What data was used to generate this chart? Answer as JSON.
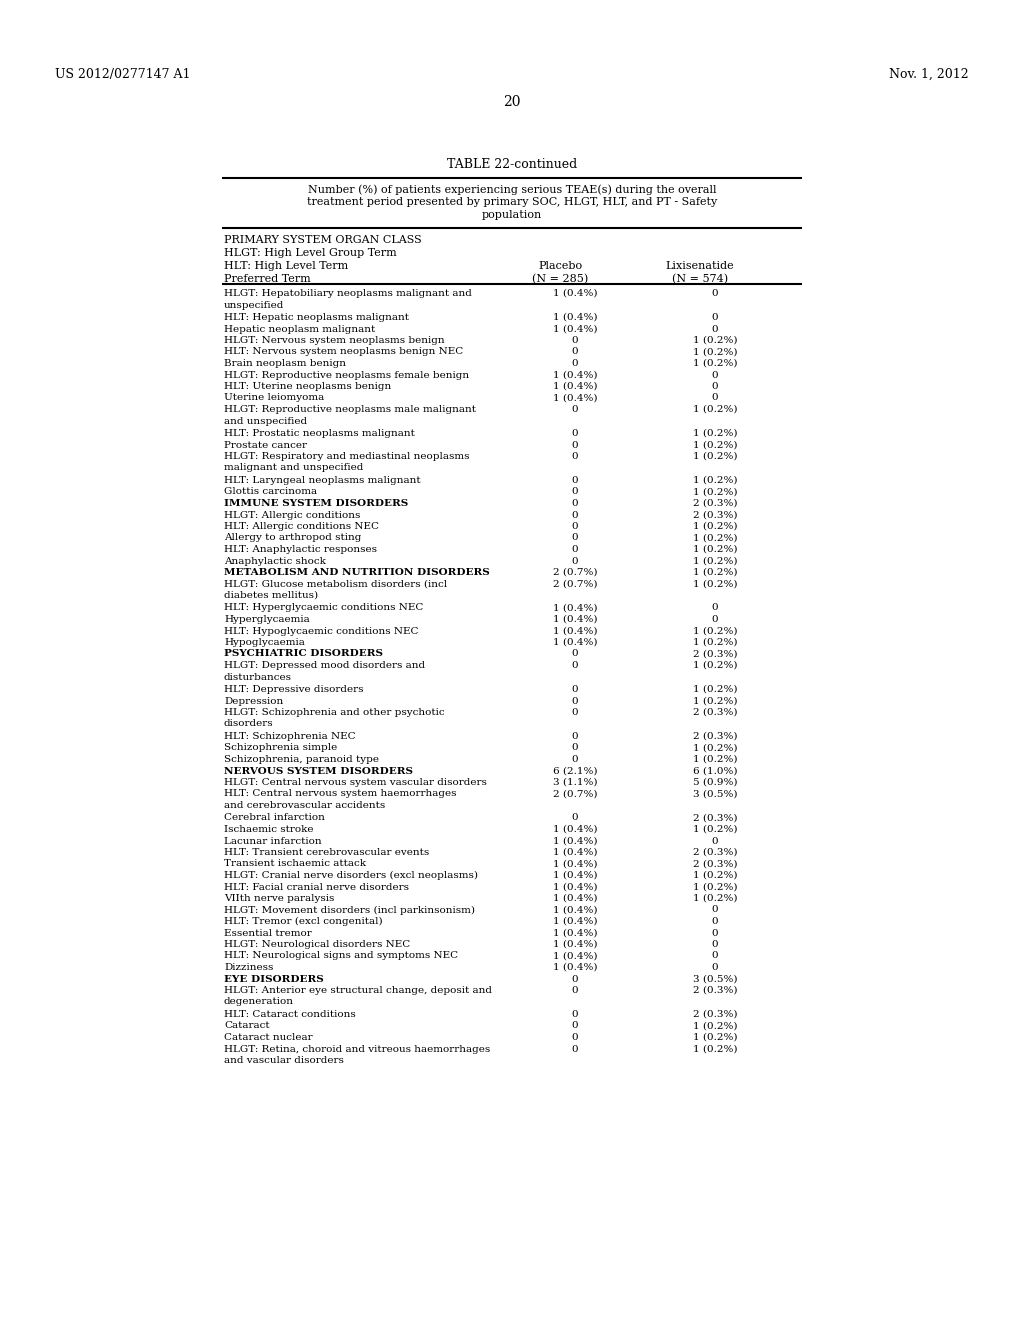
{
  "header_left": "US 2012/0277147 A1",
  "header_right": "Nov. 1, 2012",
  "page_number": "20",
  "table_title": "TABLE 22-continued",
  "table_subtitle": "Number (%) of patients experiencing serious TEAE(s) during the overall\ntreatment period presented by primary SOC, HLGT, HLT, and PT - Safety\npopulation",
  "label_headers": [
    "PRIMARY SYSTEM ORGAN CLASS",
    "HLGT: High Level Group Term",
    "HLT: High Level Term",
    "Preferred Term"
  ],
  "col1_header": [
    "Placebo",
    "(N = 285)"
  ],
  "col2_header": [
    "Lixisenatide",
    "(N = 574)"
  ],
  "rows": [
    [
      "HLGT: Hepatobiliary neoplasms malignant and\nunspecified",
      "1 (0.4%)",
      "0"
    ],
    [
      "HLT: Hepatic neoplasms malignant",
      "1 (0.4%)",
      "0"
    ],
    [
      "Hepatic neoplasm malignant",
      "1 (0.4%)",
      "0"
    ],
    [
      "HLGT: Nervous system neoplasms benign",
      "0",
      "1 (0.2%)"
    ],
    [
      "HLT: Nervous system neoplasms benign NEC",
      "0",
      "1 (0.2%)"
    ],
    [
      "Brain neoplasm benign",
      "0",
      "1 (0.2%)"
    ],
    [
      "HLGT: Reproductive neoplasms female benign",
      "1 (0.4%)",
      "0"
    ],
    [
      "HLT: Uterine neoplasms benign",
      "1 (0.4%)",
      "0"
    ],
    [
      "Uterine leiomyoma",
      "1 (0.4%)",
      "0"
    ],
    [
      "HLGT: Reproductive neoplasms male malignant\nand unspecified",
      "0",
      "1 (0.2%)"
    ],
    [
      "HLT: Prostatic neoplasms malignant",
      "0",
      "1 (0.2%)"
    ],
    [
      "Prostate cancer",
      "0",
      "1 (0.2%)"
    ],
    [
      "HLGT: Respiratory and mediastinal neoplasms\nmalignant and unspecified",
      "0",
      "1 (0.2%)"
    ],
    [
      "HLT: Laryngeal neoplasms malignant",
      "0",
      "1 (0.2%)"
    ],
    [
      "Glottis carcinoma",
      "0",
      "1 (0.2%)"
    ],
    [
      "IMMUNE SYSTEM DISORDERS",
      "0",
      "2 (0.3%)"
    ],
    [
      "HLGT: Allergic conditions",
      "0",
      "2 (0.3%)"
    ],
    [
      "HLT: Allergic conditions NEC",
      "0",
      "1 (0.2%)"
    ],
    [
      "Allergy to arthropod sting",
      "0",
      "1 (0.2%)"
    ],
    [
      "HLT: Anaphylactic responses",
      "0",
      "1 (0.2%)"
    ],
    [
      "Anaphylactic shock",
      "0",
      "1 (0.2%)"
    ],
    [
      "METABOLISM AND NUTRITION DISORDERS",
      "2 (0.7%)",
      "1 (0.2%)"
    ],
    [
      "HLGT: Glucose metabolism disorders (incl\ndiabetes mellitus)",
      "2 (0.7%)",
      "1 (0.2%)"
    ],
    [
      "HLT: Hyperglycaemic conditions NEC",
      "1 (0.4%)",
      "0"
    ],
    [
      "Hyperglycaemia",
      "1 (0.4%)",
      "0"
    ],
    [
      "HLT: Hypoglycaemic conditions NEC",
      "1 (0.4%)",
      "1 (0.2%)"
    ],
    [
      "Hypoglycaemia",
      "1 (0.4%)",
      "1 (0.2%)"
    ],
    [
      "PSYCHIATRIC DISORDERS",
      "0",
      "2 (0.3%)"
    ],
    [
      "HLGT: Depressed mood disorders and\ndisturbances",
      "0",
      "1 (0.2%)"
    ],
    [
      "HLT: Depressive disorders",
      "0",
      "1 (0.2%)"
    ],
    [
      "Depression",
      "0",
      "1 (0.2%)"
    ],
    [
      "HLGT: Schizophrenia and other psychotic\ndisorders",
      "0",
      "2 (0.3%)"
    ],
    [
      "HLT: Schizophrenia NEC",
      "0",
      "2 (0.3%)"
    ],
    [
      "Schizophrenia simple",
      "0",
      "1 (0.2%)"
    ],
    [
      "Schizophrenia, paranoid type",
      "0",
      "1 (0.2%)"
    ],
    [
      "NERVOUS SYSTEM DISORDERS",
      "6 (2.1%)",
      "6 (1.0%)"
    ],
    [
      "HLGT: Central nervous system vascular disorders",
      "3 (1.1%)",
      "5 (0.9%)"
    ],
    [
      "HLT: Central nervous system haemorrhages\nand cerebrovascular accidents",
      "2 (0.7%)",
      "3 (0.5%)"
    ],
    [
      "Cerebral infarction",
      "0",
      "2 (0.3%)"
    ],
    [
      "Ischaemic stroke",
      "1 (0.4%)",
      "1 (0.2%)"
    ],
    [
      "Lacunar infarction",
      "1 (0.4%)",
      "0"
    ],
    [
      "HLT: Transient cerebrovascular events",
      "1 (0.4%)",
      "2 (0.3%)"
    ],
    [
      "Transient ischaemic attack",
      "1 (0.4%)",
      "2 (0.3%)"
    ],
    [
      "HLGT: Cranial nerve disorders (excl neoplasms)",
      "1 (0.4%)",
      "1 (0.2%)"
    ],
    [
      "HLT: Facial cranial nerve disorders",
      "1 (0.4%)",
      "1 (0.2%)"
    ],
    [
      "VIIth nerve paralysis",
      "1 (0.4%)",
      "1 (0.2%)"
    ],
    [
      "HLGT: Movement disorders (incl parkinsonism)",
      "1 (0.4%)",
      "0"
    ],
    [
      "HLT: Tremor (excl congenital)",
      "1 (0.4%)",
      "0"
    ],
    [
      "Essential tremor",
      "1 (0.4%)",
      "0"
    ],
    [
      "HLGT: Neurological disorders NEC",
      "1 (0.4%)",
      "0"
    ],
    [
      "HLT: Neurological signs and symptoms NEC",
      "1 (0.4%)",
      "0"
    ],
    [
      "Dizziness",
      "1 (0.4%)",
      "0"
    ],
    [
      "EYE DISORDERS",
      "0",
      "3 (0.5%)"
    ],
    [
      "HLGT: Anterior eye structural change, deposit and\ndegeneration",
      "0",
      "2 (0.3%)"
    ],
    [
      "HLT: Cataract conditions",
      "0",
      "2 (0.3%)"
    ],
    [
      "Cataract",
      "0",
      "1 (0.2%)"
    ],
    [
      "Cataract nuclear",
      "0",
      "1 (0.2%)"
    ],
    [
      "HLGT: Retina, choroid and vitreous haemorrhages\nand vascular disorders",
      "0",
      "1 (0.2%)"
    ]
  ],
  "allcaps_rows": [
    15,
    21,
    27,
    35,
    52
  ],
  "background_color": "#ffffff",
  "text_color": "#000000"
}
